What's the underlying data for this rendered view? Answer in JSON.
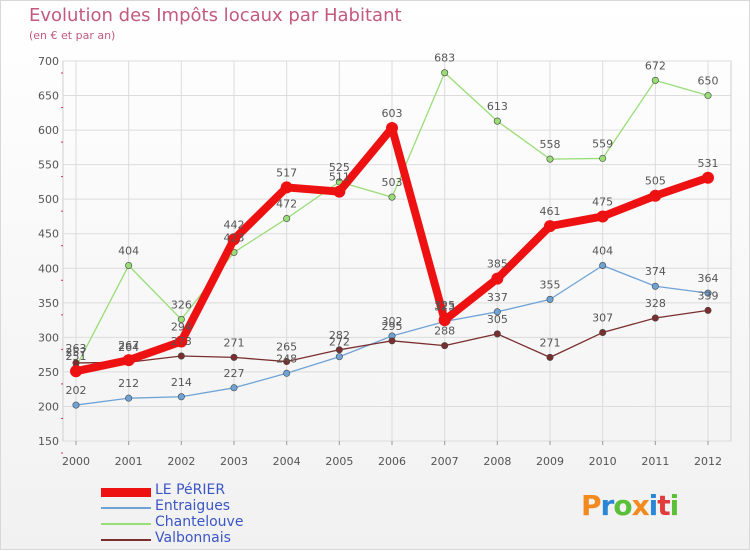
{
  "chart_data": {
    "type": "line",
    "title": "Evolution des Impôts locaux par Habitant",
    "subtitle": "(en € et par an)",
    "xlabel": "",
    "ylabel": "",
    "x": [
      "2000",
      "2001",
      "2002",
      "2003",
      "2004",
      "2005",
      "2006",
      "2007",
      "2008",
      "2009",
      "2010",
      "2011",
      "2012"
    ],
    "ylim": [
      150,
      700
    ],
    "yticks": [
      150,
      200,
      250,
      300,
      350,
      400,
      450,
      500,
      550,
      600,
      650,
      700
    ],
    "grid": true,
    "legend_position": "bottom-left",
    "series": [
      {
        "name": "LE PéRIER",
        "color": "#ee1111",
        "values": [
          251,
          267,
          294,
          442,
          517,
          511,
          603,
          325,
          385,
          461,
          475,
          505,
          531
        ]
      },
      {
        "name": "Entraigues",
        "color": "#6fa3d6",
        "values": [
          202,
          212,
          214,
          227,
          248,
          272,
          302,
          323,
          337,
          355,
          404,
          374,
          364
        ]
      },
      {
        "name": "Chantelouve",
        "color": "#99dd77",
        "values": [
          257,
          404,
          326,
          423,
          472,
          525,
          503,
          683,
          613,
          558,
          559,
          672,
          650
        ]
      },
      {
        "name": "Valbonnais",
        "color": "#7a2e2e",
        "values": [
          263,
          264,
          273,
          271,
          265,
          282,
          295,
          288,
          305,
          271,
          307,
          328,
          339
        ]
      }
    ]
  },
  "logo": {
    "letters": [
      "P",
      "r",
      "o",
      "x",
      "i",
      "t",
      "i"
    ],
    "colors": [
      "#f28a1f",
      "#2a86d6",
      "#5bbf3a",
      "#f28a1f",
      "#2a86d6",
      "#e23b3b",
      "#5bbf3a"
    ]
  }
}
